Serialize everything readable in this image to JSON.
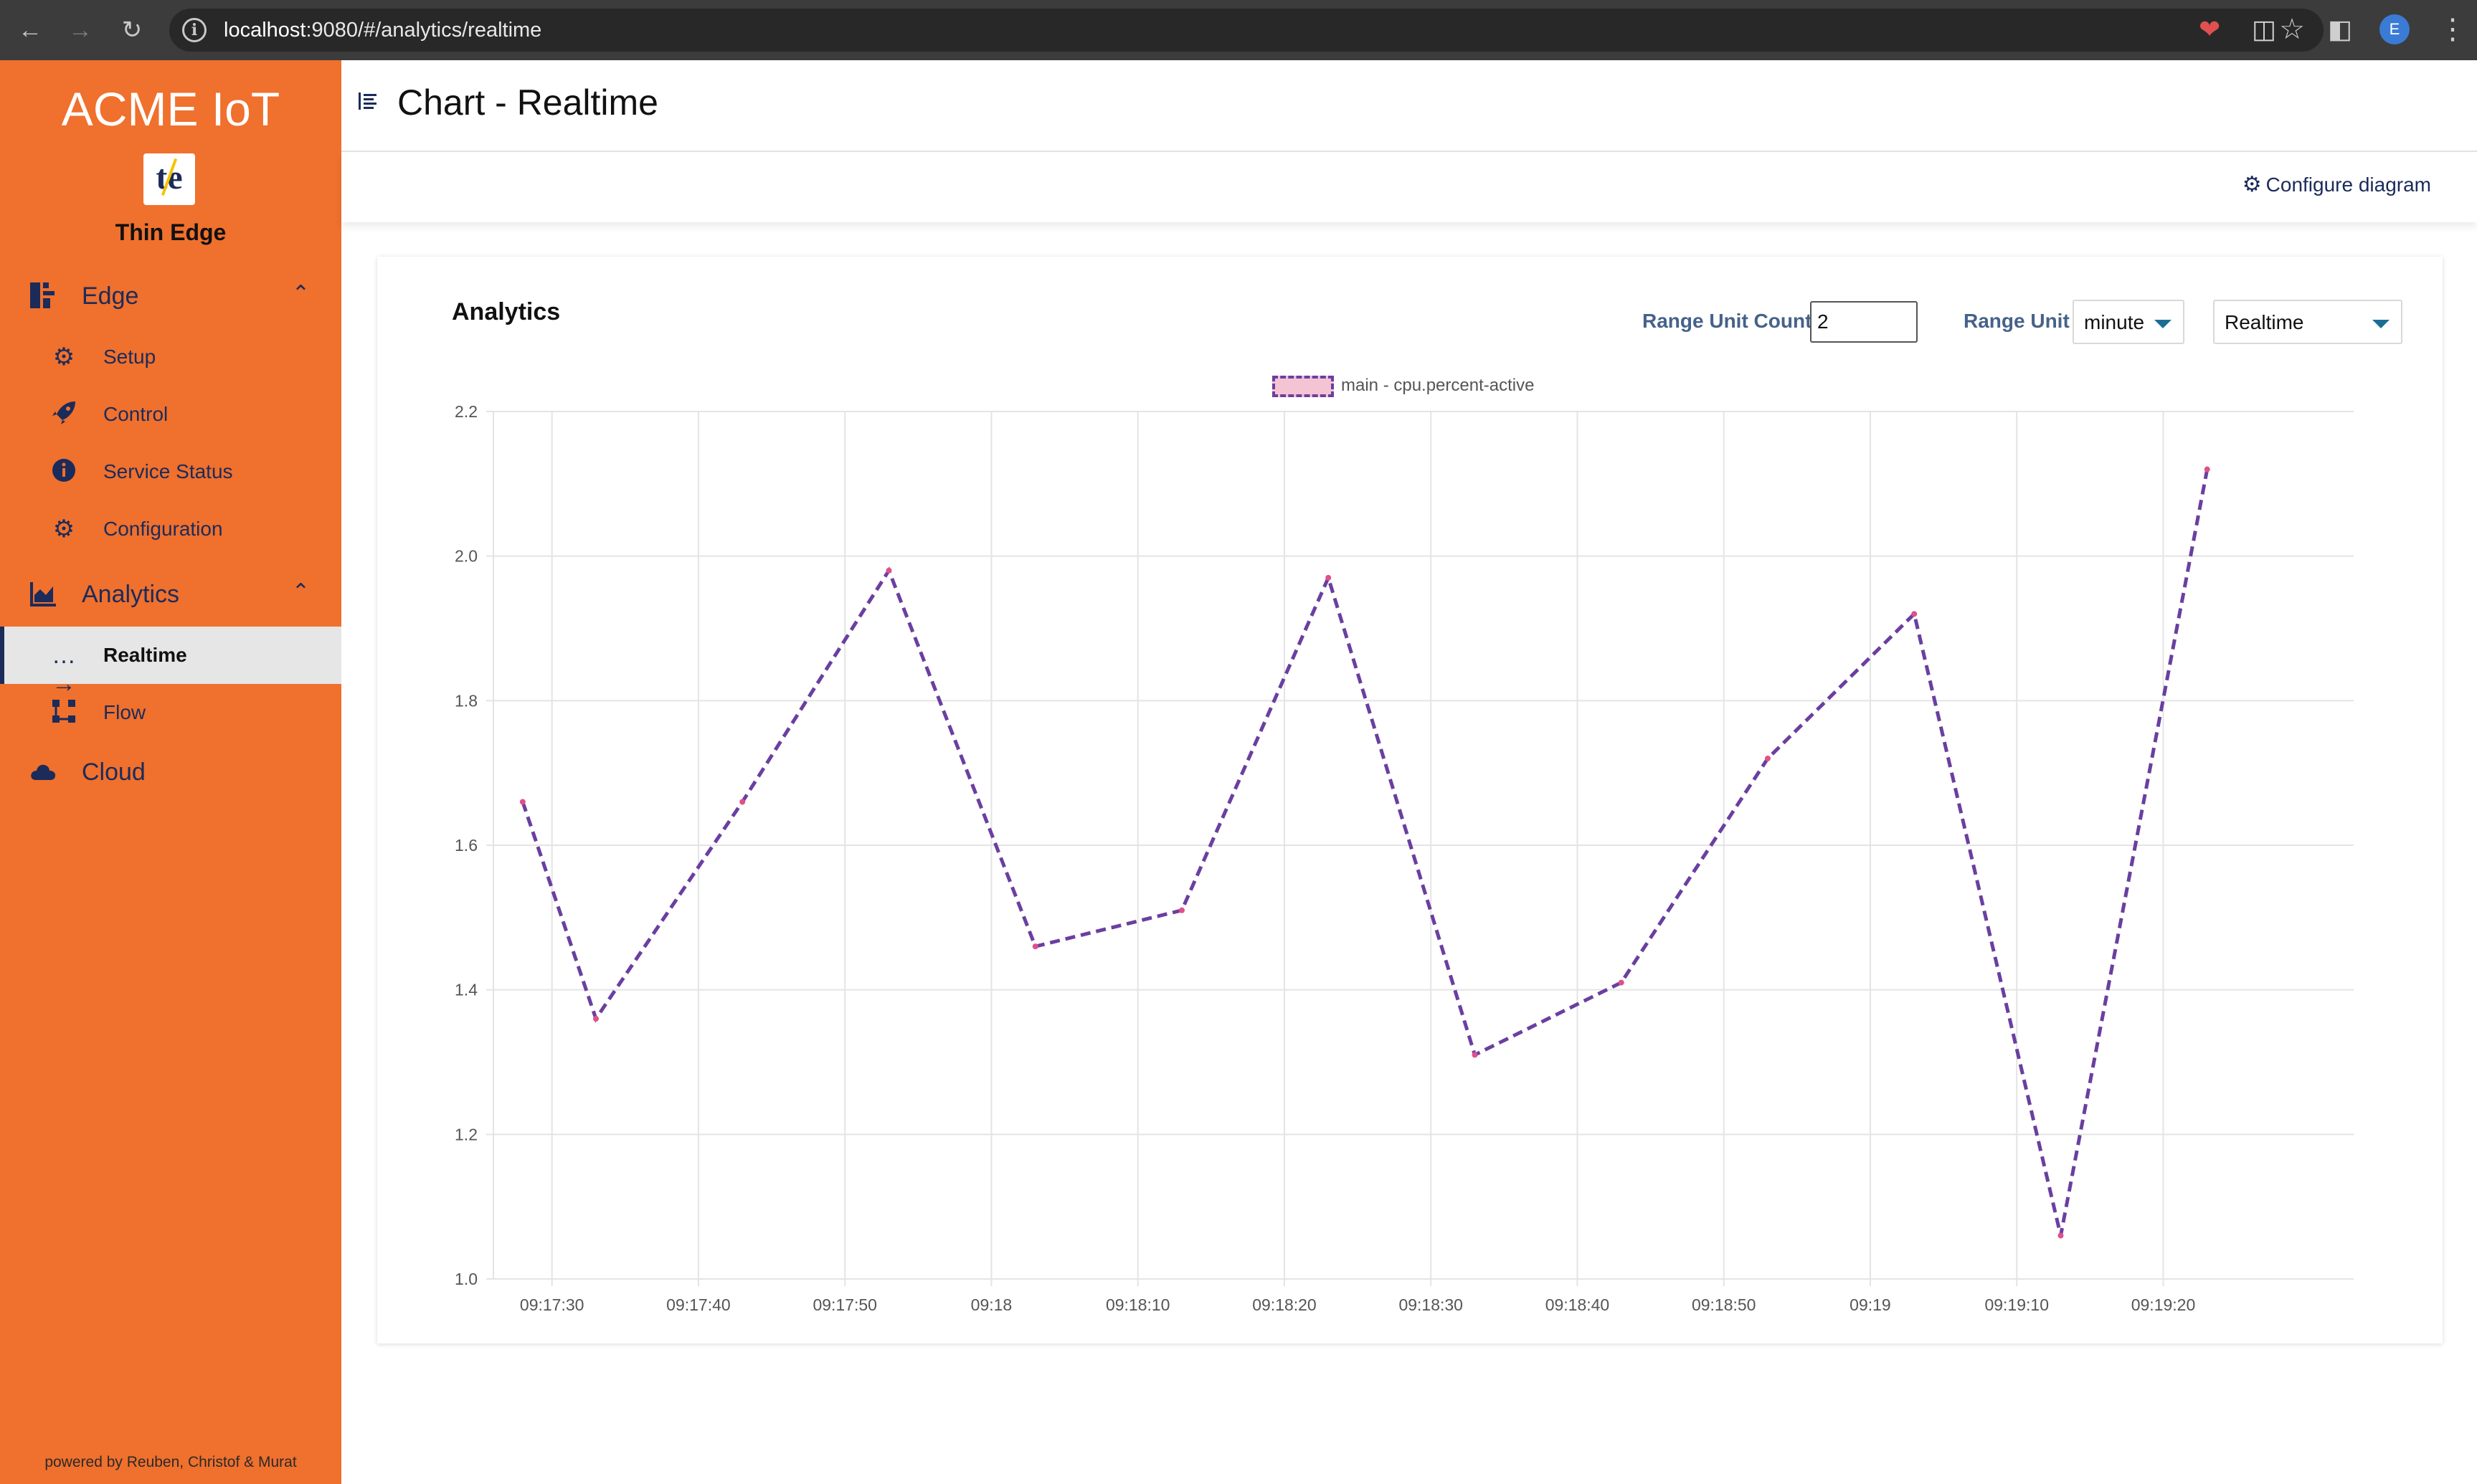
{
  "browser": {
    "url_host": "localhost",
    "url_rest": ":9080/#/analytics/realtime",
    "profile_initial": "E"
  },
  "sidebar": {
    "app_title": "ACME IoT",
    "edge_name": "Thin Edge",
    "groups": [
      {
        "label": "Edge",
        "icon": "edge-icon",
        "expanded": true
      },
      {
        "label": "Analytics",
        "icon": "chart-area-icon",
        "expanded": true
      },
      {
        "label": "Cloud",
        "icon": "cloud-icon",
        "expanded": false
      }
    ],
    "items": [
      {
        "label": "Setup",
        "icon": "gear-icon"
      },
      {
        "label": "Control",
        "icon": "rocket-icon"
      },
      {
        "label": "Service Status",
        "icon": "info-icon"
      },
      {
        "label": "Configuration",
        "icon": "gear-icon"
      },
      {
        "label": "Realtime",
        "icon": "arrow-right-dotted-icon",
        "active": true
      },
      {
        "label": "Flow",
        "icon": "flow-icon"
      }
    ],
    "footer": "powered by Reuben, Christof & Murat"
  },
  "header": {
    "title": "Chart - Realtime",
    "configure_label": "Configure diagram"
  },
  "card": {
    "title": "Analytics",
    "range_unit_count_label": "Range Unit Count",
    "range_unit_count_value": "2",
    "range_unit_label": "Range Unit",
    "range_unit_value": "minute",
    "mode_value": "Realtime"
  },
  "colors": {
    "sidebar": "#f0702d",
    "navy": "#1b2b5a",
    "series_line": "#6a3fa0",
    "series_fill": "#f4c3d4",
    "point": "#e0508a"
  },
  "chart_data": {
    "type": "line",
    "title": "",
    "xlabel": "",
    "ylabel": "",
    "ylim": [
      1.0,
      2.2
    ],
    "yticks": [
      "1.0",
      "1.2",
      "1.4",
      "1.6",
      "1.8",
      "2.0",
      "2.2"
    ],
    "xticks": [
      "09:17:30",
      "09:17:40",
      "09:17:50",
      "09:18",
      "09:18:10",
      "09:18:20",
      "09:18:30",
      "09:18:40",
      "09:18:50",
      "09:19",
      "09:19:10",
      "09:19:20"
    ],
    "grid": true,
    "legend_position": "top-center",
    "series": [
      {
        "name": "main - cpu.percent-active",
        "line_style": "dashed",
        "x": [
          "09:17:28",
          "09:17:33",
          "09:17:43",
          "09:17:53",
          "09:18:03",
          "09:18:13",
          "09:18:23",
          "09:18:33",
          "09:18:43",
          "09:18:53",
          "09:19:03",
          "09:19:13",
          "09:19:23"
        ],
        "values": [
          1.66,
          1.36,
          1.66,
          1.98,
          1.46,
          1.51,
          1.97,
          1.31,
          1.41,
          1.72,
          1.92,
          1.06,
          2.12
        ]
      }
    ]
  }
}
